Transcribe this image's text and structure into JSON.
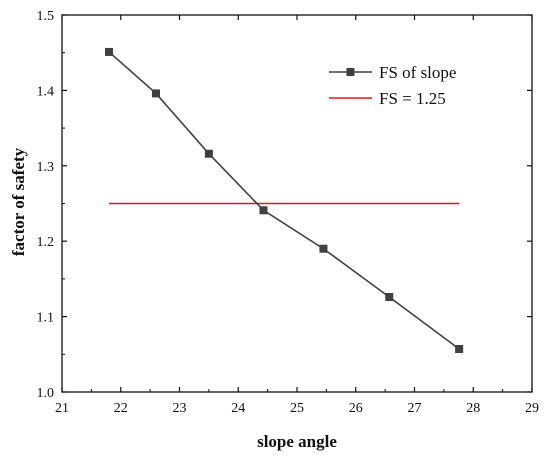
{
  "chart_data": {
    "type": "line",
    "xlabel": "slope angle",
    "ylabel": "factor of safety",
    "xlim": [
      21,
      29
    ],
    "ylim": [
      1.0,
      1.5
    ],
    "xticks": [
      21,
      22,
      23,
      24,
      25,
      26,
      27,
      28,
      29
    ],
    "yticks": [
      1.0,
      1.1,
      1.2,
      1.3,
      1.4,
      1.5
    ],
    "xtick_labels": [
      "21",
      "22",
      "23",
      "24",
      "25",
      "26",
      "27",
      "28",
      "29"
    ],
    "ytick_labels": [
      "1.0",
      "1.1",
      "1.2",
      "1.3",
      "1.4",
      "1.5"
    ],
    "grid": false,
    "legend_position": "top-right",
    "series": [
      {
        "name": "FS of slope",
        "color": "#404040",
        "marker": "square",
        "x": [
          21.8,
          22.6,
          23.5,
          24.43,
          25.45,
          26.57,
          27.76
        ],
        "y": [
          1.451,
          1.396,
          1.316,
          1.241,
          1.19,
          1.126,
          1.057
        ]
      },
      {
        "name": "FS = 1.25",
        "color": "#e8141b",
        "marker": "none",
        "x": [
          21.8,
          27.76
        ],
        "y": [
          1.25,
          1.25
        ]
      }
    ]
  }
}
